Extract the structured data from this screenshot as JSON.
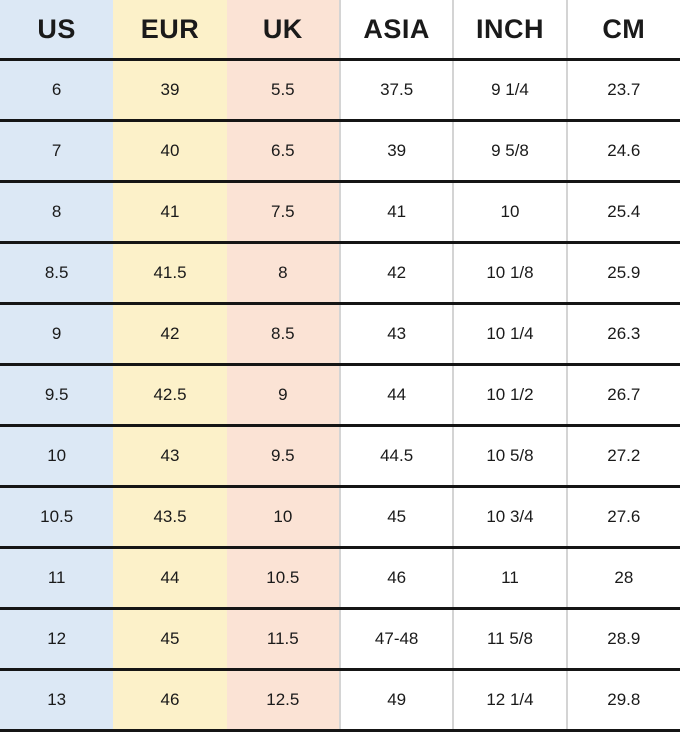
{
  "chart_data": {
    "type": "table",
    "columns": [
      "US",
      "EUR",
      "UK",
      "ASIA",
      "INCH",
      "CM"
    ],
    "rows": [
      [
        "6",
        "39",
        "5.5",
        "37.5",
        "9 1/4",
        "23.7"
      ],
      [
        "7",
        "40",
        "6.5",
        "39",
        "9 5/8",
        "24.6"
      ],
      [
        "8",
        "41",
        "7.5",
        "41",
        "10",
        "25.4"
      ],
      [
        "8.5",
        "41.5",
        "8",
        "42",
        "10 1/8",
        "25.9"
      ],
      [
        "9",
        "42",
        "8.5",
        "43",
        "10 1/4",
        "26.3"
      ],
      [
        "9.5",
        "42.5",
        "9",
        "44",
        "10 1/2",
        "26.7"
      ],
      [
        "10",
        "43",
        "9.5",
        "44.5",
        "10 5/8",
        "27.2"
      ],
      [
        "10.5",
        "43.5",
        "10",
        "45",
        "10 3/4",
        "27.6"
      ],
      [
        "11",
        "44",
        "10.5",
        "46",
        "11",
        "28"
      ],
      [
        "12",
        "45",
        "11.5",
        "47-48",
        "11 5/8",
        "28.9"
      ],
      [
        "13",
        "46",
        "12.5",
        "49",
        "12 1/4",
        "29.8"
      ]
    ]
  },
  "colors": {
    "column_backgrounds": [
      "#dce8f5",
      "#fcf1c9",
      "#fbe3d5",
      "#ffffff",
      "#ffffff",
      "#ffffff"
    ],
    "row_divider": "#151515",
    "column_divider": "#d4d4d4",
    "text": "#1a1a1a"
  }
}
